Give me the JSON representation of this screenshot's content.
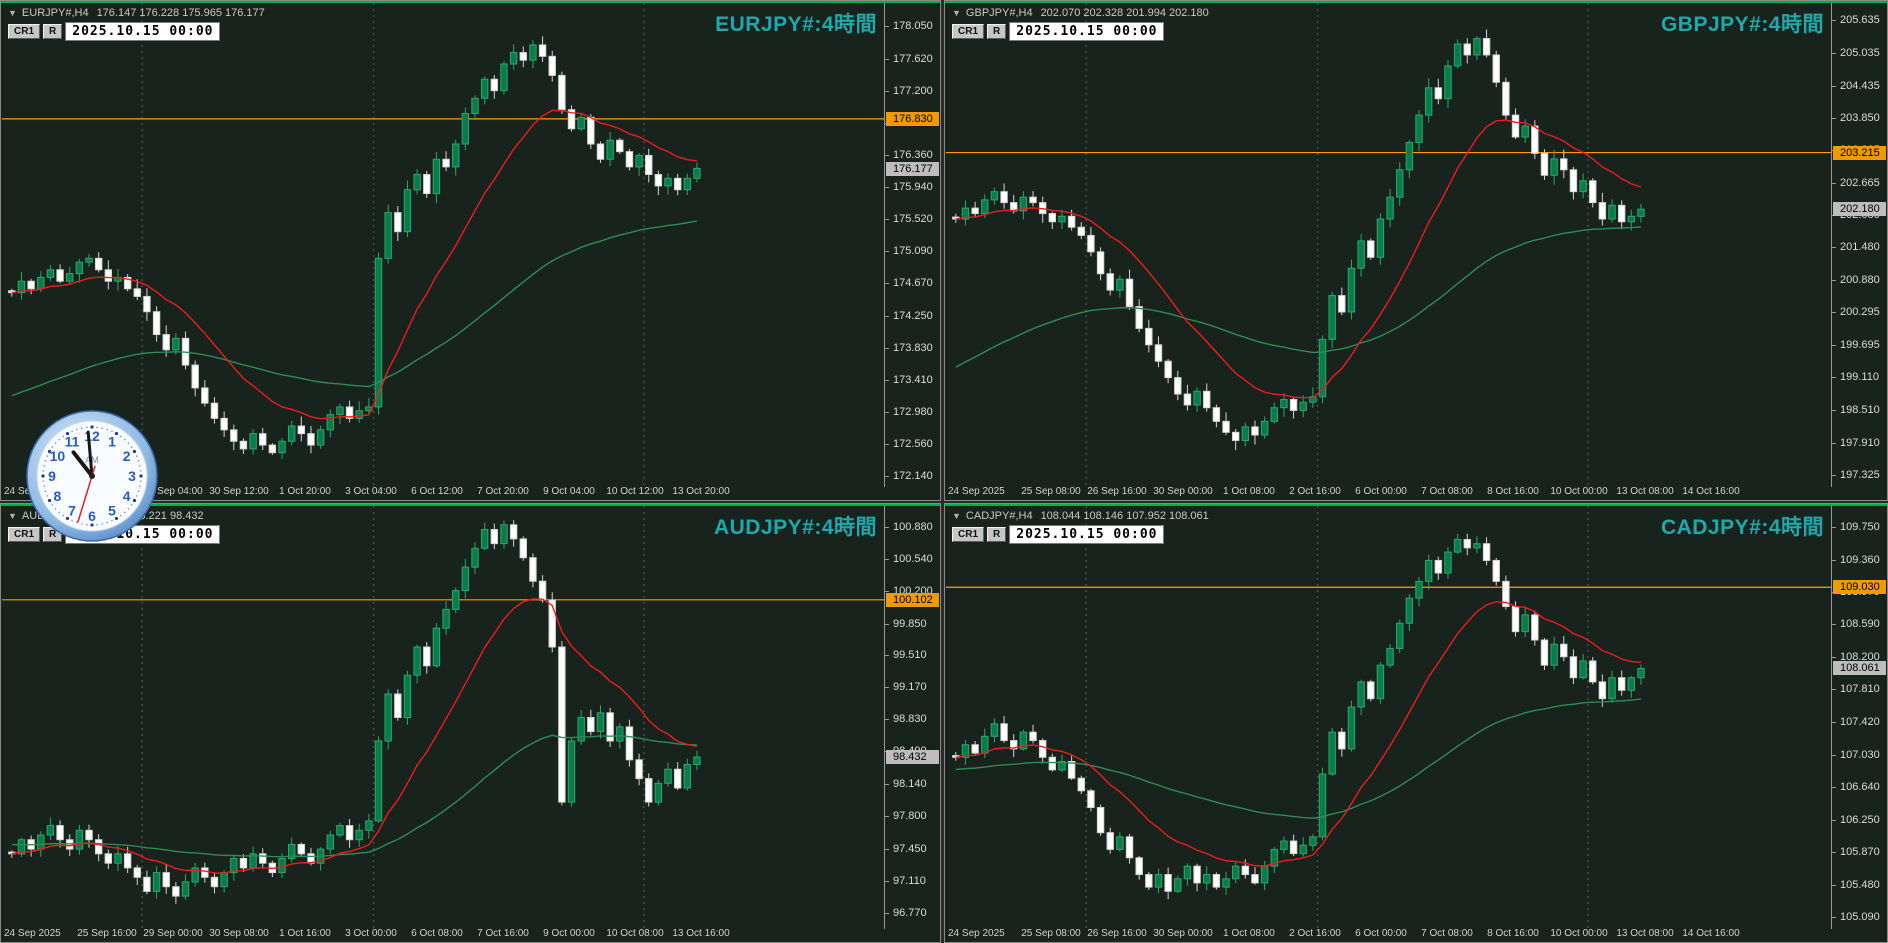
{
  "colors": {
    "panel_bg": "#19231d",
    "top_line": "#00b14a",
    "title": "#1ea9ad",
    "header_text": "#c9c9c9",
    "bull_fill": "#0a7c4c",
    "bull_stroke": "#2aa86a",
    "bear_fill": "#ffffff",
    "bear_stroke": "#d4d4d4",
    "ma_fast": "#ee1c1c",
    "ma_slow": "#2e8b57",
    "hline": "#ff9c00",
    "orange_badge": "#ef9b00",
    "price_badge": "#bdbdbd",
    "grid_dash": "#8a968e",
    "axis_line": "#9a9a9a"
  },
  "clock": {
    "numbers": [
      "12",
      "1",
      "2",
      "3",
      "4",
      "5",
      "6",
      "7",
      "8",
      "9",
      "10",
      "11"
    ],
    "ampm": "AM",
    "hour_angle": -38,
    "minute_angle": -5,
    "second_angle": 197
  },
  "panels": [
    {
      "name": "EURJPY",
      "header": {
        "collapse": "▼",
        "symbol": "EURJPY#,H4",
        "ohlc": "176.147 176.228 175.965 176.177",
        "button_cr": "CR1",
        "button_r": "R",
        "date": "2025.10.15 00:00"
      },
      "title": "EURJPY#:4時間",
      "hline": {
        "price": 176.83,
        "label": "176.830"
      },
      "last": {
        "price": 176.177,
        "label": "176.177"
      },
      "ylim": [
        172.0,
        178.35
      ],
      "yticks": [
        [
          178.05,
          "178.050"
        ],
        [
          177.62,
          "177.620"
        ],
        [
          177.2,
          "177.200"
        ],
        [
          176.78,
          "176.780"
        ],
        [
          176.36,
          "176.360"
        ],
        [
          175.94,
          "175.940"
        ],
        [
          175.52,
          "175.520"
        ],
        [
          175.09,
          "175.090"
        ],
        [
          174.67,
          "174.670"
        ],
        [
          174.25,
          "174.250"
        ],
        [
          173.83,
          "173.830"
        ],
        [
          173.41,
          "173.410"
        ],
        [
          172.98,
          "172.980"
        ],
        [
          172.56,
          "172.560"
        ],
        [
          172.14,
          "172.140"
        ]
      ],
      "xticks": [
        "24 Sep 2025",
        "",
        "29 Sep 04:00",
        "30 Sep 12:00",
        "1 Oct 20:00",
        "3 Oct 04:00",
        "6 Oct 12:00",
        "7 Oct 20:00",
        "9 Oct 04:00",
        "10 Oct 12:00",
        "13 Oct 20:00"
      ],
      "separators": [
        14,
        38,
        66
      ],
      "closes": [
        174.55,
        174.7,
        174.6,
        174.75,
        174.85,
        174.7,
        174.8,
        174.95,
        175.0,
        174.85,
        174.7,
        174.75,
        174.6,
        174.5,
        174.3,
        174.0,
        173.8,
        173.95,
        173.6,
        173.3,
        173.1,
        172.9,
        172.75,
        172.6,
        172.5,
        172.7,
        172.55,
        172.45,
        172.6,
        172.8,
        172.7,
        172.55,
        172.75,
        172.95,
        173.05,
        172.9,
        173.0,
        173.05,
        175.0,
        175.6,
        175.35,
        175.9,
        176.1,
        175.85,
        176.3,
        176.2,
        176.5,
        176.9,
        177.1,
        177.35,
        177.2,
        177.55,
        177.7,
        177.6,
        177.8,
        177.65,
        177.4,
        176.95,
        176.7,
        176.85,
        176.5,
        176.3,
        176.55,
        176.4,
        176.2,
        176.35,
        176.1,
        175.95,
        176.05,
        175.9,
        176.05,
        176.18
      ],
      "ma_fast_period": 14,
      "ma_slow_period": 60,
      "ma_slow_seed": 173.15
    },
    {
      "name": "GBPJPY",
      "header": {
        "collapse": "▼",
        "symbol": "GBPJPY#,H4",
        "ohlc": "202.070 202.328 201.994 202.180",
        "button_cr": "CR1",
        "button_r": "R",
        "date": "2025.10.15 00:00"
      },
      "title": "GBPJPY#:4時間",
      "hline": {
        "price": 203.215,
        "label": "203.215"
      },
      "last": {
        "price": 202.18,
        "label": "202.180"
      },
      "ylim": [
        197.1,
        205.95
      ],
      "yticks": [
        [
          205.635,
          "205.635"
        ],
        [
          205.035,
          "205.035"
        ],
        [
          204.435,
          "204.435"
        ],
        [
          203.85,
          "203.850"
        ],
        [
          203.265,
          "203.265"
        ],
        [
          202.665,
          "202.665"
        ],
        [
          202.08,
          "202.080"
        ],
        [
          201.48,
          "201.480"
        ],
        [
          200.88,
          "200.880"
        ],
        [
          200.295,
          "200.295"
        ],
        [
          199.695,
          "199.695"
        ],
        [
          199.11,
          "199.110"
        ],
        [
          198.51,
          "198.510"
        ],
        [
          197.91,
          "197.910"
        ],
        [
          197.325,
          "197.325"
        ]
      ],
      "xticks": [
        "24 Sep 2025",
        "25 Sep 08:00",
        "26 Sep 16:00",
        "30 Sep 00:00",
        "1 Oct 08:00",
        "2 Oct 16:00",
        "6 Oct 00:00",
        "7 Oct 08:00",
        "8 Oct 16:00",
        "10 Oct 00:00",
        "13 Oct 08:00",
        "14 Oct 16:00"
      ],
      "separators": [
        14,
        38,
        66
      ],
      "closes": [
        202.0,
        202.2,
        202.1,
        202.35,
        202.5,
        202.3,
        202.15,
        202.4,
        202.3,
        202.1,
        201.95,
        202.05,
        201.85,
        201.7,
        201.4,
        201.0,
        200.7,
        200.9,
        200.4,
        200.0,
        199.7,
        199.4,
        199.1,
        198.8,
        198.6,
        198.85,
        198.55,
        198.3,
        198.1,
        197.95,
        198.2,
        198.05,
        198.3,
        198.55,
        198.7,
        198.5,
        198.65,
        198.75,
        199.8,
        200.6,
        200.3,
        201.1,
        201.6,
        201.3,
        202.0,
        202.4,
        202.9,
        203.4,
        203.9,
        204.4,
        204.2,
        204.8,
        205.2,
        205.0,
        205.3,
        205.0,
        204.5,
        203.9,
        203.5,
        203.7,
        203.2,
        202.8,
        203.1,
        202.9,
        202.5,
        202.7,
        202.3,
        202.0,
        202.25,
        201.95,
        202.05,
        202.18
      ],
      "ma_fast_period": 14,
      "ma_slow_period": 60,
      "ma_slow_seed": 199.2
    },
    {
      "name": "AUDJPY",
      "header": {
        "collapse": "▼",
        "symbol": "AUDJPY#,H4",
        "ohlc": "98.460 98.221 98.432",
        "button_cr": "CR1",
        "button_r": "R",
        "date": "2025.10.15 00:00"
      },
      "title": "AUDJPY#:4時間",
      "hline": {
        "price": 100.102,
        "label": "100.102"
      },
      "last": {
        "price": 98.432,
        "label": "98.432"
      },
      "ylim": [
        96.6,
        101.1
      ],
      "yticks": [
        [
          100.88,
          "100.880"
        ],
        [
          100.54,
          "100.540"
        ],
        [
          100.2,
          "100.200"
        ],
        [
          99.85,
          "99.850"
        ],
        [
          99.51,
          "99.510"
        ],
        [
          99.17,
          "99.170"
        ],
        [
          98.83,
          "98.830"
        ],
        [
          98.49,
          "98.490"
        ],
        [
          98.14,
          "98.140"
        ],
        [
          97.8,
          "97.800"
        ],
        [
          97.45,
          "97.450"
        ],
        [
          97.11,
          "97.110"
        ],
        [
          96.77,
          "96.770"
        ]
      ],
      "xticks": [
        "24 Sep 2025",
        "25 Sep 16:00",
        "29 Sep 00:00",
        "30 Sep 08:00",
        "1 Oct 16:00",
        "3 Oct 00:00",
        "6 Oct 08:00",
        "7 Oct 16:00",
        "9 Oct 00:00",
        "10 Oct 08:00",
        "13 Oct 16:00"
      ],
      "separators": [
        14,
        38,
        66
      ],
      "closes": [
        97.4,
        97.55,
        97.45,
        97.6,
        97.7,
        97.55,
        97.45,
        97.65,
        97.55,
        97.4,
        97.3,
        97.4,
        97.25,
        97.15,
        97.0,
        97.2,
        97.05,
        96.95,
        97.1,
        97.25,
        97.15,
        97.05,
        97.2,
        97.35,
        97.25,
        97.4,
        97.3,
        97.2,
        97.35,
        97.5,
        97.4,
        97.3,
        97.45,
        97.6,
        97.7,
        97.55,
        97.65,
        97.75,
        98.6,
        99.1,
        98.85,
        99.3,
        99.6,
        99.4,
        99.8,
        100.0,
        100.2,
        100.45,
        100.65,
        100.85,
        100.7,
        100.9,
        100.75,
        100.55,
        100.3,
        100.1,
        99.6,
        97.95,
        98.6,
        98.85,
        98.7,
        98.9,
        98.6,
        98.75,
        98.4,
        98.2,
        97.95,
        98.15,
        98.3,
        98.1,
        98.35,
        98.43
      ],
      "ma_fast_period": 14,
      "ma_slow_period": 60,
      "ma_slow_seed": 97.5
    },
    {
      "name": "CADJPY",
      "header": {
        "collapse": "▼",
        "symbol": "CADJPY#,H4",
        "ohlc": "108.044 108.146 107.952 108.061",
        "button_cr": "CR1",
        "button_r": "R",
        "date": "2025.10.15 00:00"
      },
      "title": "CADJPY#:4時間",
      "hline": {
        "price": 109.03,
        "label": "109.030"
      },
      "last": {
        "price": 108.061,
        "label": "108.061"
      },
      "ylim": [
        104.95,
        110.0
      ],
      "yticks": [
        [
          109.75,
          "109.750"
        ],
        [
          109.36,
          "109.360"
        ],
        [
          108.97,
          "108.970"
        ],
        [
          108.59,
          "108.590"
        ],
        [
          108.2,
          "108.200"
        ],
        [
          107.81,
          "107.810"
        ],
        [
          107.42,
          "107.420"
        ],
        [
          107.03,
          "107.030"
        ],
        [
          106.64,
          "106.640"
        ],
        [
          106.25,
          "106.250"
        ],
        [
          105.87,
          "105.870"
        ],
        [
          105.48,
          "105.480"
        ],
        [
          105.09,
          "105.090"
        ]
      ],
      "xticks": [
        "24 Sep 2025",
        "25 Sep 08:00",
        "26 Sep 16:00",
        "30 Sep 00:00",
        "1 Oct 08:00",
        "2 Oct 16:00",
        "6 Oct 00:00",
        "7 Oct 08:00",
        "8 Oct 16:00",
        "10 Oct 00:00",
        "13 Oct 08:00",
        "14 Oct 16:00"
      ],
      "separators": [
        14,
        38,
        66
      ],
      "closes": [
        107.0,
        107.15,
        107.05,
        107.25,
        107.4,
        107.2,
        107.1,
        107.3,
        107.2,
        107.0,
        106.85,
        106.95,
        106.75,
        106.6,
        106.4,
        106.1,
        105.9,
        106.05,
        105.8,
        105.6,
        105.45,
        105.6,
        105.4,
        105.55,
        105.7,
        105.5,
        105.6,
        105.45,
        105.55,
        105.7,
        105.6,
        105.5,
        105.7,
        105.9,
        106.0,
        105.85,
        105.95,
        106.05,
        106.8,
        107.3,
        107.1,
        107.6,
        107.9,
        107.7,
        108.1,
        108.3,
        108.6,
        108.9,
        109.1,
        109.35,
        109.2,
        109.45,
        109.6,
        109.5,
        109.55,
        109.35,
        109.1,
        108.8,
        108.5,
        108.7,
        108.4,
        108.1,
        108.35,
        108.2,
        107.95,
        108.15,
        107.9,
        107.7,
        107.95,
        107.8,
        107.95,
        108.06
      ],
      "ma_fast_period": 14,
      "ma_slow_period": 60,
      "ma_slow_seed": 106.85
    }
  ]
}
